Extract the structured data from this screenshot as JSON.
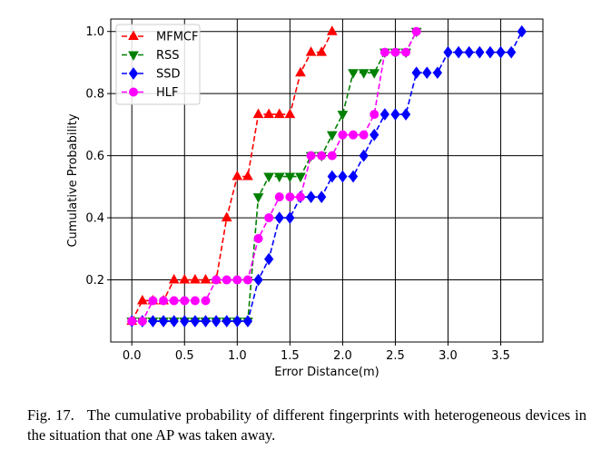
{
  "caption": {
    "figure_number": "Fig. 17.",
    "text": "The cumulative probability of different fingerprints with heterogeneous devices in the situation that one AP was taken away."
  },
  "chart_data": {
    "type": "line",
    "title": "",
    "xlabel": "Error Distance(m)",
    "ylabel": "Cumulative Probability",
    "xlim": [
      -0.2,
      3.9
    ],
    "ylim": [
      0.0,
      1.04
    ],
    "xticks": [
      0.0,
      0.5,
      1.0,
      1.5,
      2.0,
      2.5,
      3.0,
      3.5
    ],
    "xtick_labels": [
      "0.0",
      "0.5",
      "1.0",
      "1.5",
      "2.0",
      "2.5",
      "3.0",
      "3.5"
    ],
    "yticks": [
      0.2,
      0.4,
      0.6,
      0.8,
      1.0
    ],
    "ytick_labels": [
      "0.2",
      "0.4",
      "0.6",
      "0.8",
      "1.0"
    ],
    "grid": true,
    "legend_position": "top-left",
    "series": [
      {
        "name": "MFMCF",
        "color": "#ff0000",
        "marker": "triangle-up",
        "x": [
          0.0,
          0.1,
          0.2,
          0.3,
          0.4,
          0.5,
          0.6,
          0.7,
          0.8,
          0.9,
          1.0,
          1.1,
          1.2,
          1.3,
          1.4,
          1.5,
          1.6,
          1.7,
          1.8,
          1.9
        ],
        "y": [
          0.067,
          0.133,
          0.133,
          0.133,
          0.2,
          0.2,
          0.2,
          0.2,
          0.2,
          0.4,
          0.533,
          0.533,
          0.733,
          0.733,
          0.733,
          0.733,
          0.867,
          0.933,
          0.933,
          1.0
        ]
      },
      {
        "name": "RSS",
        "color": "#008000",
        "marker": "triangle-down",
        "x": [
          0.0,
          0.1,
          0.2,
          0.3,
          0.4,
          0.5,
          0.6,
          0.7,
          0.8,
          0.9,
          1.0,
          1.1,
          1.2,
          1.3,
          1.4,
          1.5,
          1.6,
          1.7,
          1.8,
          1.9,
          2.0,
          2.1,
          2.2,
          2.3,
          2.4,
          2.5,
          2.6,
          2.7
        ],
        "y": [
          0.067,
          0.067,
          0.067,
          0.067,
          0.067,
          0.067,
          0.067,
          0.067,
          0.067,
          0.067,
          0.067,
          0.067,
          0.467,
          0.533,
          0.533,
          0.533,
          0.533,
          0.6,
          0.6,
          0.667,
          0.733,
          0.867,
          0.867,
          0.867,
          0.933,
          0.933,
          0.933,
          1.0
        ]
      },
      {
        "name": "SSD",
        "color": "#0000ff",
        "marker": "diamond",
        "x": [
          0.0,
          0.1,
          0.2,
          0.3,
          0.4,
          0.5,
          0.6,
          0.7,
          0.8,
          0.9,
          1.0,
          1.1,
          1.2,
          1.3,
          1.4,
          1.5,
          1.6,
          1.7,
          1.8,
          1.9,
          2.0,
          2.1,
          2.2,
          2.3,
          2.4,
          2.5,
          2.6,
          2.7,
          2.8,
          2.9,
          3.0,
          3.1,
          3.2,
          3.3,
          3.4,
          3.5,
          3.6,
          3.7
        ],
        "y": [
          0.067,
          0.067,
          0.067,
          0.067,
          0.067,
          0.067,
          0.067,
          0.067,
          0.067,
          0.067,
          0.067,
          0.067,
          0.2,
          0.267,
          0.4,
          0.4,
          0.467,
          0.467,
          0.467,
          0.533,
          0.533,
          0.533,
          0.6,
          0.667,
          0.733,
          0.733,
          0.733,
          0.867,
          0.867,
          0.867,
          0.933,
          0.933,
          0.933,
          0.933,
          0.933,
          0.933,
          0.933,
          1.0
        ]
      },
      {
        "name": "HLF",
        "color": "#ff00ff",
        "marker": "circle",
        "x": [
          0.0,
          0.1,
          0.2,
          0.3,
          0.4,
          0.5,
          0.6,
          0.7,
          0.8,
          0.9,
          1.0,
          1.1,
          1.2,
          1.3,
          1.4,
          1.5,
          1.6,
          1.7,
          1.8,
          1.9,
          2.0,
          2.1,
          2.2,
          2.3,
          2.4,
          2.5,
          2.6,
          2.7
        ],
        "y": [
          0.067,
          0.067,
          0.133,
          0.133,
          0.133,
          0.133,
          0.133,
          0.133,
          0.2,
          0.2,
          0.2,
          0.2,
          0.333,
          0.4,
          0.467,
          0.467,
          0.467,
          0.6,
          0.6,
          0.6,
          0.667,
          0.667,
          0.667,
          0.733,
          0.933,
          0.933,
          0.933,
          1.0
        ]
      }
    ]
  }
}
